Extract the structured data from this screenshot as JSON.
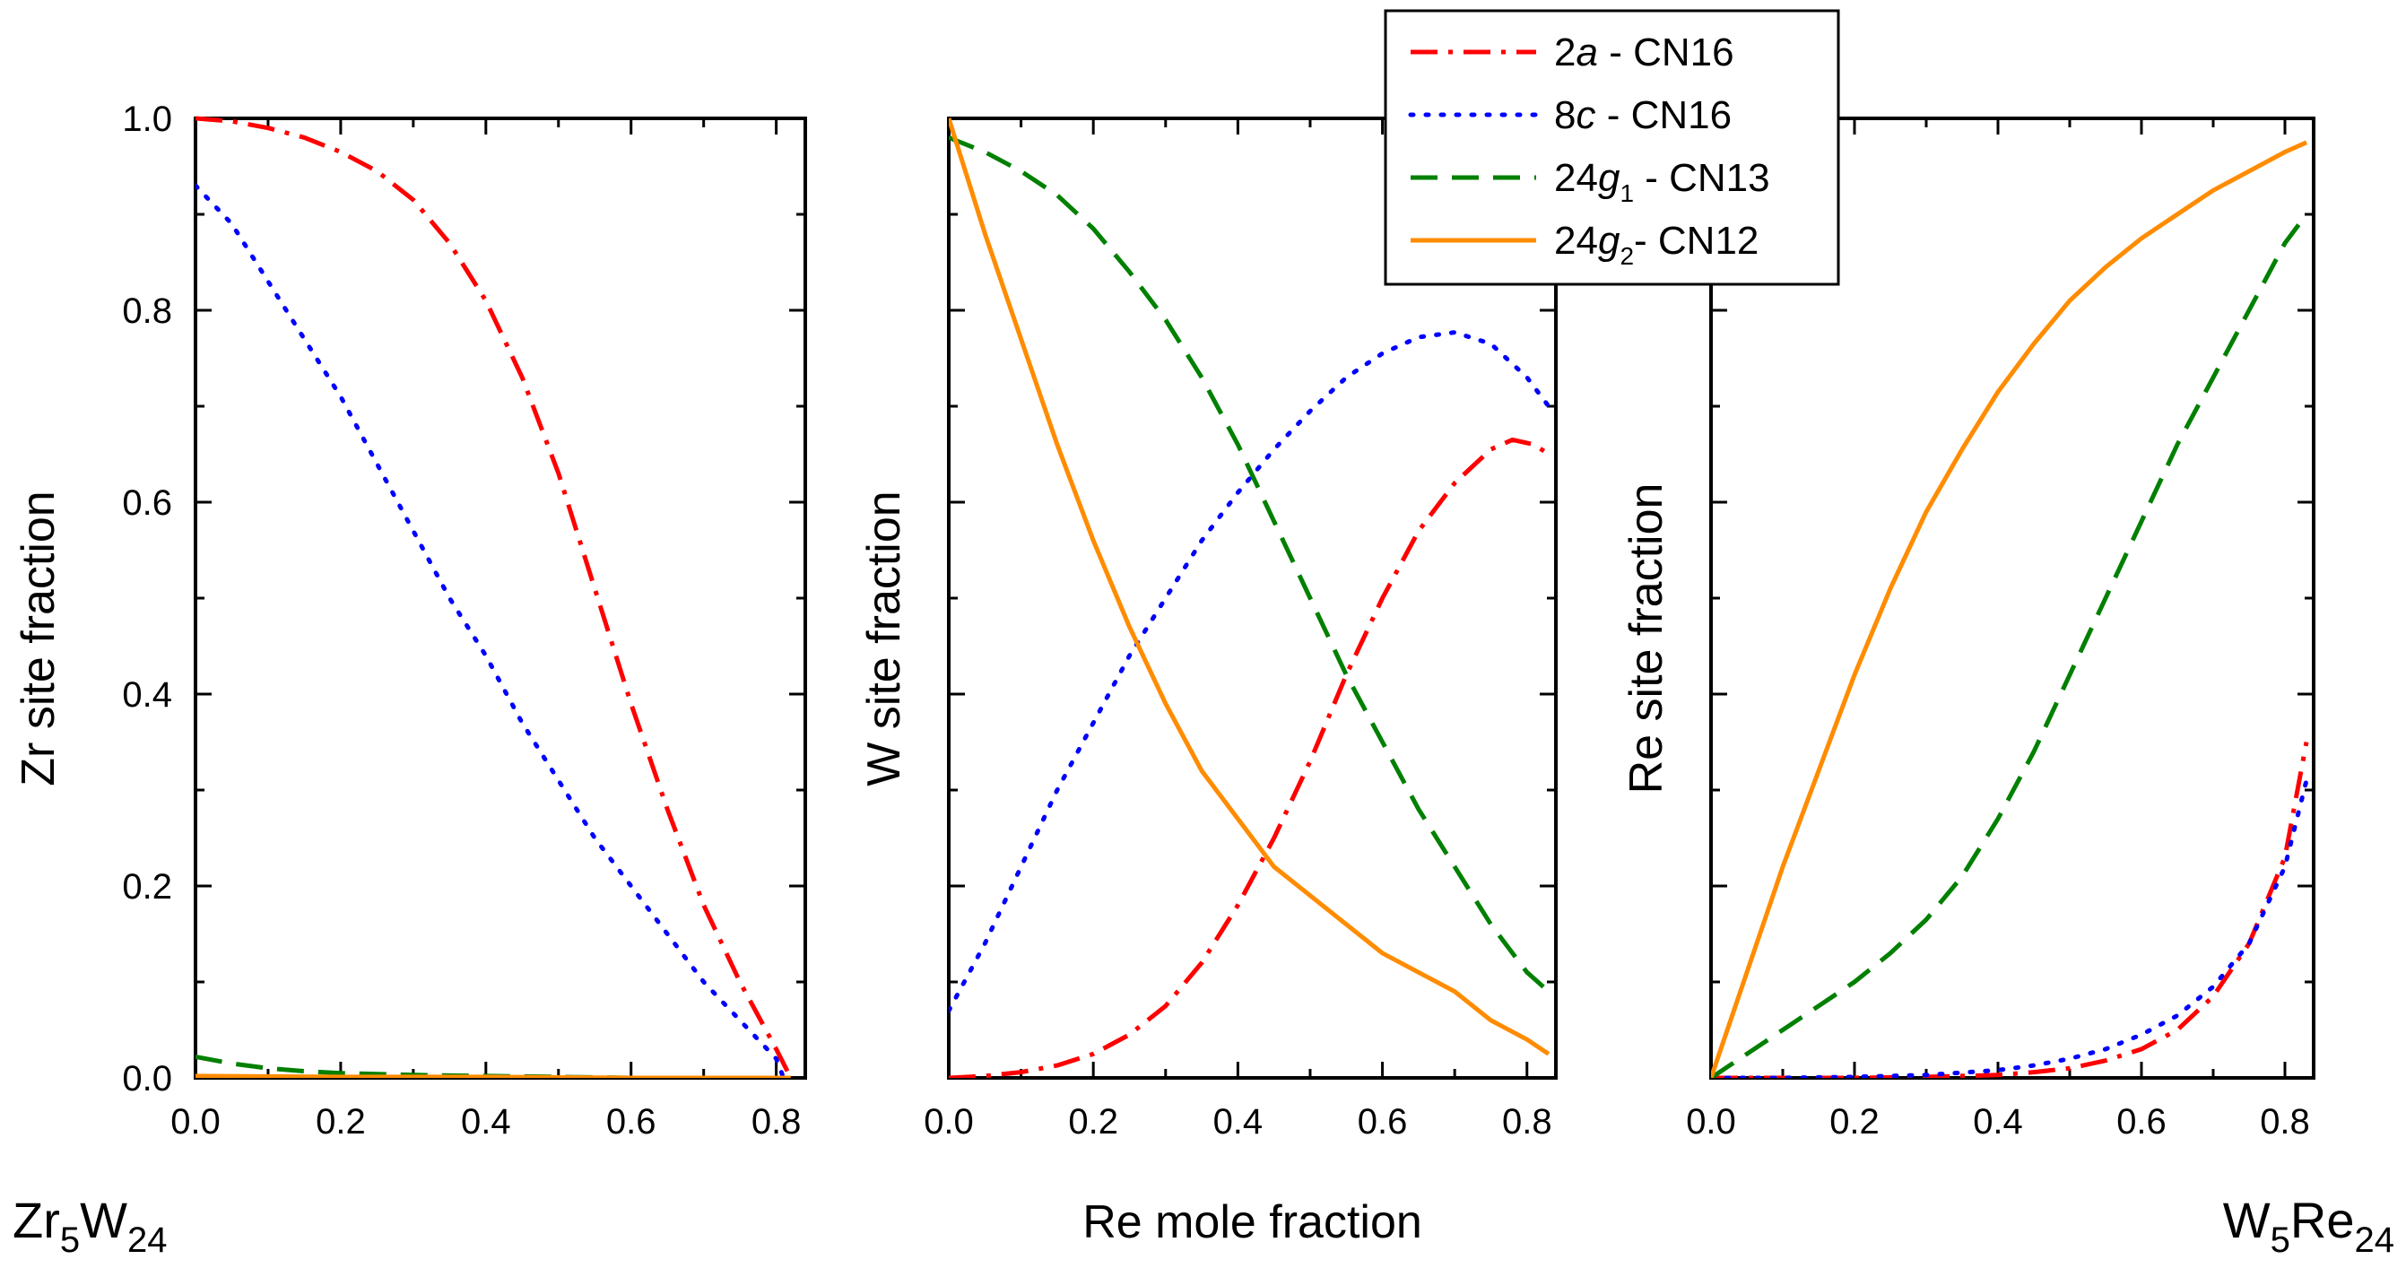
{
  "chart_data": [
    {
      "type": "line",
      "panel": "left",
      "ylabel": "Zr site fraction",
      "xlabel": "",
      "corner_label": {
        "base": "Zr",
        "sub1": "5",
        "mid": "W",
        "sub2": "24"
      },
      "xlim": [
        0.0,
        0.84
      ],
      "ylim": [
        0.0,
        1.0
      ],
      "x_ticks": [
        "0.0",
        "0.2",
        "0.4",
        "0.6",
        "0.8"
      ],
      "y_ticks": [
        "0.0",
        "0.2",
        "0.4",
        "0.6",
        "0.8",
        "1.0"
      ],
      "series": [
        {
          "name": "2a - CN16",
          "color": "#ff0000",
          "dash": "dashdot",
          "x": [
            0.0,
            0.05,
            0.1,
            0.15,
            0.2,
            0.25,
            0.3,
            0.35,
            0.4,
            0.45,
            0.5,
            0.55,
            0.6,
            0.65,
            0.7,
            0.75,
            0.8,
            0.82
          ],
          "y": [
            1.0,
            0.997,
            0.99,
            0.98,
            0.965,
            0.945,
            0.915,
            0.87,
            0.81,
            0.73,
            0.63,
            0.51,
            0.39,
            0.28,
            0.18,
            0.1,
            0.03,
            0.0
          ]
        },
        {
          "name": "8c - CN16",
          "color": "#0000ff",
          "dash": "dot",
          "x": [
            0.0,
            0.05,
            0.1,
            0.15,
            0.2,
            0.25,
            0.3,
            0.35,
            0.4,
            0.45,
            0.5,
            0.55,
            0.6,
            0.65,
            0.7,
            0.75,
            0.8,
            0.81
          ],
          "y": [
            0.93,
            0.89,
            0.83,
            0.77,
            0.71,
            0.64,
            0.57,
            0.5,
            0.44,
            0.37,
            0.31,
            0.25,
            0.2,
            0.15,
            0.1,
            0.06,
            0.02,
            0.0
          ]
        },
        {
          "name": "24g1 - CN13",
          "color": "#008000",
          "dash": "dash",
          "x": [
            0.0,
            0.05,
            0.1,
            0.15,
            0.2,
            0.3,
            0.4,
            0.5,
            0.6,
            0.7,
            0.8,
            0.82
          ],
          "y": [
            0.022,
            0.015,
            0.01,
            0.007,
            0.005,
            0.003,
            0.002,
            0.001,
            0.0,
            0.0,
            0.0,
            0.0
          ]
        },
        {
          "name": "24g2- CN12",
          "color": "#ff8c00",
          "dash": "solid",
          "x": [
            0.0,
            0.2,
            0.4,
            0.6,
            0.8,
            0.82
          ],
          "y": [
            0.002,
            0.001,
            0.001,
            0.0,
            0.0,
            0.0
          ]
        }
      ]
    },
    {
      "type": "line",
      "panel": "middle",
      "ylabel": "W site fraction",
      "xlabel": "Re mole fraction",
      "xlim": [
        0.0,
        0.84
      ],
      "ylim": [
        0.0,
        1.0
      ],
      "x_ticks": [
        "0.0",
        "0.2",
        "0.4",
        "0.6",
        "0.8"
      ],
      "y_ticks": [],
      "series": [
        {
          "name": "2a - CN16",
          "color": "#ff0000",
          "dash": "dashdot",
          "x": [
            0.0,
            0.05,
            0.1,
            0.15,
            0.2,
            0.25,
            0.3,
            0.35,
            0.4,
            0.45,
            0.5,
            0.55,
            0.6,
            0.65,
            0.7,
            0.75,
            0.78,
            0.81,
            0.83
          ],
          "y": [
            0.0,
            0.002,
            0.006,
            0.013,
            0.025,
            0.045,
            0.075,
            0.12,
            0.18,
            0.25,
            0.33,
            0.42,
            0.5,
            0.57,
            0.62,
            0.655,
            0.665,
            0.66,
            0.65
          ]
        },
        {
          "name": "8c - CN16",
          "color": "#0000ff",
          "dash": "dot",
          "x": [
            0.0,
            0.05,
            0.1,
            0.15,
            0.2,
            0.25,
            0.3,
            0.35,
            0.4,
            0.45,
            0.5,
            0.55,
            0.6,
            0.65,
            0.7,
            0.75,
            0.8,
            0.83
          ],
          "y": [
            0.07,
            0.14,
            0.22,
            0.3,
            0.37,
            0.44,
            0.5,
            0.56,
            0.61,
            0.655,
            0.695,
            0.73,
            0.755,
            0.772,
            0.777,
            0.765,
            0.73,
            0.7
          ]
        },
        {
          "name": "24g1 - CN13",
          "color": "#008000",
          "dash": "dash",
          "x": [
            0.0,
            0.05,
            0.1,
            0.15,
            0.2,
            0.25,
            0.3,
            0.35,
            0.4,
            0.45,
            0.5,
            0.55,
            0.6,
            0.65,
            0.7,
            0.75,
            0.8,
            0.83
          ],
          "y": [
            0.98,
            0.965,
            0.945,
            0.92,
            0.885,
            0.84,
            0.79,
            0.73,
            0.66,
            0.58,
            0.5,
            0.42,
            0.35,
            0.28,
            0.22,
            0.16,
            0.11,
            0.09
          ]
        },
        {
          "name": "24g2- CN12",
          "color": "#ff8c00",
          "dash": "solid",
          "x": [
            0.0,
            0.05,
            0.1,
            0.15,
            0.2,
            0.25,
            0.3,
            0.35,
            0.4,
            0.45,
            0.5,
            0.55,
            0.6,
            0.65,
            0.7,
            0.75,
            0.8,
            0.83
          ],
          "y": [
            1.0,
            0.88,
            0.77,
            0.66,
            0.56,
            0.47,
            0.39,
            0.32,
            0.27,
            0.22,
            0.19,
            0.16,
            0.13,
            0.11,
            0.09,
            0.06,
            0.04,
            0.025
          ]
        }
      ]
    },
    {
      "type": "line",
      "panel": "right",
      "ylabel": "Re site fraction",
      "xlabel": "",
      "corner_label": {
        "base": "W",
        "sub1": "5",
        "mid": "Re",
        "sub2": "24"
      },
      "xlim": [
        0.0,
        0.84
      ],
      "ylim": [
        0.0,
        1.0
      ],
      "x_ticks": [
        "0.0",
        "0.2",
        "0.4",
        "0.6",
        "0.8"
      ],
      "y_ticks": [],
      "series": [
        {
          "name": "2a - CN16",
          "color": "#ff0000",
          "dash": "dashdot",
          "x": [
            0.0,
            0.1,
            0.2,
            0.3,
            0.4,
            0.45,
            0.5,
            0.55,
            0.6,
            0.65,
            0.7,
            0.75,
            0.8,
            0.83
          ],
          "y": [
            0.0,
            0.0,
            0.0,
            0.001,
            0.003,
            0.006,
            0.01,
            0.018,
            0.03,
            0.05,
            0.085,
            0.14,
            0.23,
            0.35
          ]
        },
        {
          "name": "8c - CN16",
          "color": "#0000ff",
          "dash": "dot",
          "x": [
            0.0,
            0.1,
            0.2,
            0.3,
            0.4,
            0.45,
            0.5,
            0.55,
            0.6,
            0.65,
            0.7,
            0.75,
            0.8,
            0.83
          ],
          "y": [
            0.0,
            0.0,
            0.001,
            0.003,
            0.008,
            0.013,
            0.02,
            0.03,
            0.045,
            0.065,
            0.095,
            0.14,
            0.22,
            0.31
          ]
        },
        {
          "name": "24g1 - CN13",
          "color": "#008000",
          "dash": "dash",
          "x": [
            0.0,
            0.05,
            0.1,
            0.15,
            0.2,
            0.25,
            0.3,
            0.35,
            0.4,
            0.45,
            0.5,
            0.55,
            0.6,
            0.65,
            0.7,
            0.75,
            0.8,
            0.83
          ],
          "y": [
            0.0,
            0.025,
            0.05,
            0.075,
            0.1,
            0.13,
            0.165,
            0.21,
            0.27,
            0.34,
            0.42,
            0.5,
            0.58,
            0.66,
            0.73,
            0.8,
            0.87,
            0.9
          ]
        },
        {
          "name": "24g2- CN12",
          "color": "#ff8c00",
          "dash": "solid",
          "x": [
            0.0,
            0.05,
            0.1,
            0.15,
            0.2,
            0.25,
            0.3,
            0.35,
            0.4,
            0.45,
            0.5,
            0.55,
            0.6,
            0.65,
            0.7,
            0.75,
            0.8,
            0.83
          ],
          "y": [
            0.0,
            0.11,
            0.22,
            0.32,
            0.42,
            0.51,
            0.59,
            0.655,
            0.715,
            0.765,
            0.81,
            0.845,
            0.875,
            0.9,
            0.925,
            0.945,
            0.965,
            0.975
          ]
        }
      ]
    }
  ],
  "legend": {
    "placement": "top-center",
    "entries": [
      {
        "base": "2",
        "italic": "a",
        "sub": "",
        "suffix": " - CN16",
        "color": "#ff0000",
        "dash": "dashdot"
      },
      {
        "base": "8",
        "italic": "c",
        "sub": "",
        "suffix": " - CN16",
        "color": "#0000ff",
        "dash": "dot"
      },
      {
        "base": "24",
        "italic": "g",
        "sub": "1",
        "suffix": " - CN13",
        "color": "#008000",
        "dash": "dash"
      },
      {
        "base": "24",
        "italic": "g",
        "sub": "2",
        "suffix": "- CN12",
        "color": "#ff8c00",
        "dash": "solid"
      }
    ]
  }
}
